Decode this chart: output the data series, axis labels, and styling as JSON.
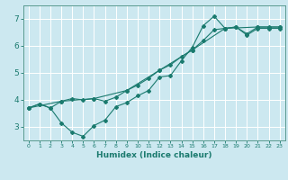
{
  "title": "",
  "xlabel": "Humidex (Indice chaleur)",
  "background_color": "#cce8f0",
  "grid_color": "#ffffff",
  "line_color": "#1a7a6e",
  "xlim": [
    -0.5,
    23.5
  ],
  "ylim": [
    2.5,
    7.5
  ],
  "xticks": [
    0,
    1,
    2,
    3,
    4,
    5,
    6,
    7,
    8,
    9,
    10,
    11,
    12,
    13,
    14,
    15,
    16,
    17,
    18,
    19,
    20,
    21,
    22,
    23
  ],
  "yticks": [
    3,
    4,
    5,
    6,
    7
  ],
  "line1_x": [
    0,
    1,
    2,
    3,
    4,
    5,
    6,
    7,
    8,
    9,
    10,
    11,
    12,
    13,
    14,
    15,
    16,
    17,
    18,
    19,
    20,
    21,
    22,
    23
  ],
  "line1_y": [
    3.7,
    3.85,
    3.7,
    3.15,
    2.8,
    2.65,
    3.05,
    3.25,
    3.75,
    3.9,
    4.15,
    4.35,
    4.85,
    4.9,
    5.45,
    5.95,
    6.75,
    7.1,
    6.65,
    6.7,
    6.4,
    6.65,
    6.65,
    6.65
  ],
  "line2_x": [
    0,
    1,
    2,
    3,
    4,
    5,
    6,
    7,
    8,
    9,
    10,
    11,
    12,
    13,
    14,
    15,
    16,
    17,
    18,
    19,
    20,
    21,
    22,
    23
  ],
  "line2_y": [
    3.7,
    3.85,
    3.7,
    3.95,
    4.05,
    4.0,
    4.05,
    3.95,
    4.1,
    4.35,
    4.55,
    4.8,
    5.1,
    5.3,
    5.6,
    5.85,
    6.2,
    6.6,
    6.65,
    6.7,
    6.45,
    6.7,
    6.7,
    6.7
  ],
  "line3_x": [
    0,
    3,
    6,
    9,
    12,
    15,
    18,
    21,
    23
  ],
  "line3_y": [
    3.7,
    3.95,
    4.05,
    4.35,
    5.1,
    5.85,
    6.65,
    6.7,
    6.7
  ]
}
